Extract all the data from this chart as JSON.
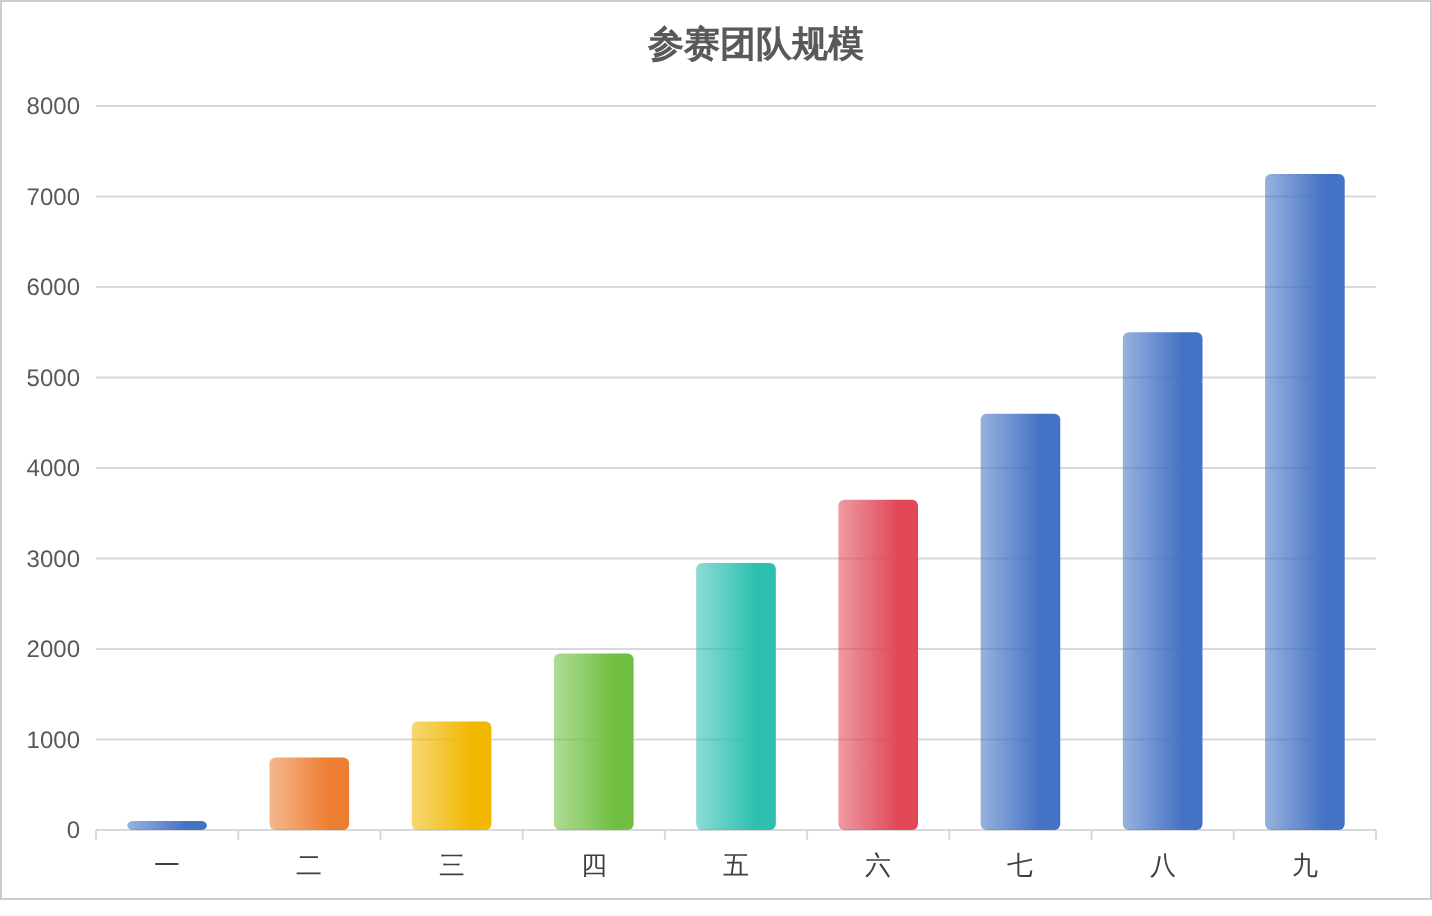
{
  "chart_data": {
    "type": "bar",
    "title": "参赛团队规模",
    "categories": [
      "一",
      "二",
      "三",
      "四",
      "五",
      "六",
      "七",
      "八",
      "九"
    ],
    "values": [
      100,
      800,
      1200,
      1950,
      2950,
      3650,
      4600,
      5500,
      7250
    ],
    "colors": [
      "#4472c4",
      "#ed7d31",
      "#f0b800",
      "#70bf41",
      "#2dc0b0",
      "#e04858",
      "#4472c4",
      "#4472c4",
      "#4472c4"
    ],
    "ylim": [
      0,
      8000
    ],
    "yticks": [
      0,
      1000,
      2000,
      3000,
      4000,
      5000,
      6000,
      7000,
      8000
    ],
    "grid": "y"
  }
}
